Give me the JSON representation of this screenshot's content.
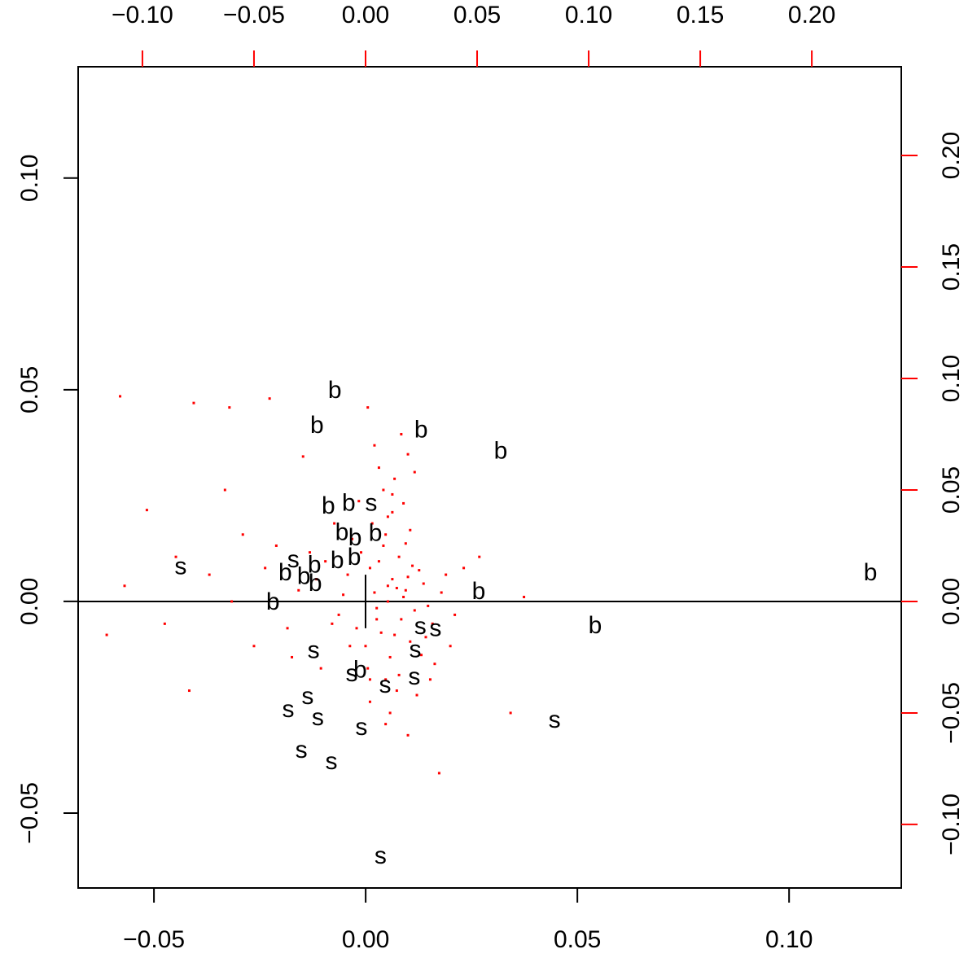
{
  "chart_data": {
    "type": "biplot",
    "xlim": [
      -0.0679,
      0.1265
    ],
    "ylim": [
      -0.0677,
      0.1263
    ],
    "xticks": [
      -0.05,
      0.0,
      0.05,
      0.1
    ],
    "yticks": [
      -0.05,
      0.0,
      0.05,
      0.1
    ],
    "x2lim": [
      -0.1288,
      0.2401
    ],
    "y2lim": [
      -0.1285,
      0.2398
    ],
    "x2ticks": [
      -0.1,
      -0.05,
      0.0,
      0.05,
      0.1,
      0.15,
      0.2
    ],
    "y2ticks": [
      -0.1,
      -0.05,
      0.0,
      0.05,
      0.1,
      0.15,
      0.2
    ],
    "secondary_color": "#ff0000",
    "hline": 0,
    "vsegment": {
      "x": 0,
      "y": [
        -0.012,
        0.012
      ]
    },
    "points": {
      "color": "#ff0000",
      "x": [
        -0.11,
        -0.116,
        0.071,
        0.065,
        0.033,
        0.051,
        0.019,
        -0.077,
        -0.061,
        -0.043,
        0.001,
        -0.098,
        -0.079,
        -0.063,
        -0.108,
        0.01,
        0.012,
        0.005,
        0.018,
        0.002,
        -0.004,
        0.022,
        0.015,
        0.008,
        0.0,
        0.026,
        0.013,
        -0.008,
        0.03,
        0.009,
        0.017,
        0.004,
        -0.012,
        0.02,
        0.011,
        0.006,
        -0.002,
        0.024,
        0.014,
        0.001,
        0.028,
        -0.006,
        0.016,
        0.007,
        0.019,
        0.003,
        -0.01,
        0.021,
        0.012,
        0.009,
        -0.015,
        0.034,
        0.025,
        -0.003,
        0.01,
        0.014,
        0.005,
        -0.018,
        0.027,
        0.008,
        -0.022,
        0.031,
        0.018,
        -0.007,
        0.013,
        0.002,
        0.036,
        -0.025,
        0.011,
        0.02,
        -0.03,
        0.04,
        0.015,
        -0.014,
        0.006,
        -0.035,
        0.023,
        0.009,
        -0.04,
        0.017,
        -0.045,
        0.029,
        -0.05,
        0.004,
        -0.055,
        0.012,
        -0.06,
        0.019,
        -0.07,
        0.002,
        -0.085,
        0.01,
        -0.09,
        0.022,
        -0.02,
        0.038,
        -0.028,
        0.044,
        -0.033,
        0.016
      ],
      "y": [
        0.092,
        -0.015,
        0.002,
        -0.05,
        -0.077,
        0.02,
        0.066,
        0.089,
        0.087,
        0.091,
        0.087,
        0.041,
        -0.04,
        0.05,
        0.007,
        0.0,
        0.01,
        -0.008,
        0.005,
        0.015,
        -0.012,
        -0.004,
        0.02,
        0.025,
        -0.02,
        0.008,
        -0.015,
        0.012,
        -0.01,
        0.03,
        0.002,
        0.004,
        -0.006,
        -0.018,
        -0.025,
        0.018,
        0.022,
        0.014,
        0.006,
        -0.03,
        -0.002,
        0.028,
        -0.008,
        -0.014,
        0.011,
        0.035,
        0.003,
        0.016,
        0.04,
        -0.035,
        -0.01,
        0.004,
        -0.024,
        0.045,
        0.007,
        -0.04,
        -0.003,
        0.018,
        -0.016,
        0.05,
        0.01,
        -0.028,
        0.026,
        -0.02,
        0.055,
        -0.045,
        0.012,
        0.022,
        -0.05,
        0.032,
        0.005,
        -0.006,
        -0.033,
        0.035,
        0.06,
        -0.012,
        -0.042,
        -0.055,
        0.025,
        0.044,
        0.015,
        -0.035,
        -0.02,
        0.07,
        0.03,
        0.048,
        0.0,
        -0.06,
        0.012,
        -0.035,
        0.02,
        0.038,
        -0.01,
        0.058,
        -0.03,
        -0.02,
        0.065,
        0.015,
        -0.025,
        0.075
      ]
    },
    "labels": {
      "text": [
        "b",
        "b",
        "b",
        "b",
        "b",
        "b",
        "s",
        "b",
        "b",
        "b",
        "s",
        "b",
        "b",
        "b",
        "s",
        "b",
        "b",
        "b",
        "b",
        "b",
        "b",
        "b",
        "s",
        "s",
        "s",
        "s",
        "s",
        "b",
        "s",
        "s",
        "s",
        "s",
        "s",
        "s",
        "s",
        "s",
        "s",
        "s"
      ],
      "x": [
        -0.0073,
        -0.0115,
        0.0131,
        0.0319,
        -0.0088,
        -0.004,
        0.0013,
        -0.0056,
        -0.0025,
        0.0023,
        -0.0171,
        -0.0121,
        -0.0067,
        -0.0027,
        -0.0437,
        -0.019,
        -0.0146,
        -0.0119,
        0.1192,
        0.0267,
        -0.0219,
        0.0542,
        0.0129,
        0.0165,
        -0.0123,
        0.0117,
        -0.0033,
        -0.0013,
        0.0115,
        0.0046,
        -0.0137,
        -0.0183,
        -0.0113,
        -0.001,
        0.0446,
        -0.0152,
        -0.0081,
        0.0035
      ],
      "y": [
        0.0496,
        0.0413,
        0.0402,
        0.0352,
        0.0223,
        0.0229,
        0.0229,
        0.016,
        0.0148,
        0.0158,
        0.0096,
        0.0083,
        0.0094,
        0.0102,
        0.0079,
        0.0065,
        0.0056,
        0.004,
        0.0065,
        0.0021,
        -0.0004,
        -0.006,
        -0.0062,
        -0.0067,
        -0.0119,
        -0.0117,
        -0.0173,
        -0.0165,
        -0.0181,
        -0.02,
        -0.0227,
        -0.0258,
        -0.0277,
        -0.03,
        -0.0283,
        -0.0354,
        -0.0381,
        -0.0604
      ]
    }
  }
}
